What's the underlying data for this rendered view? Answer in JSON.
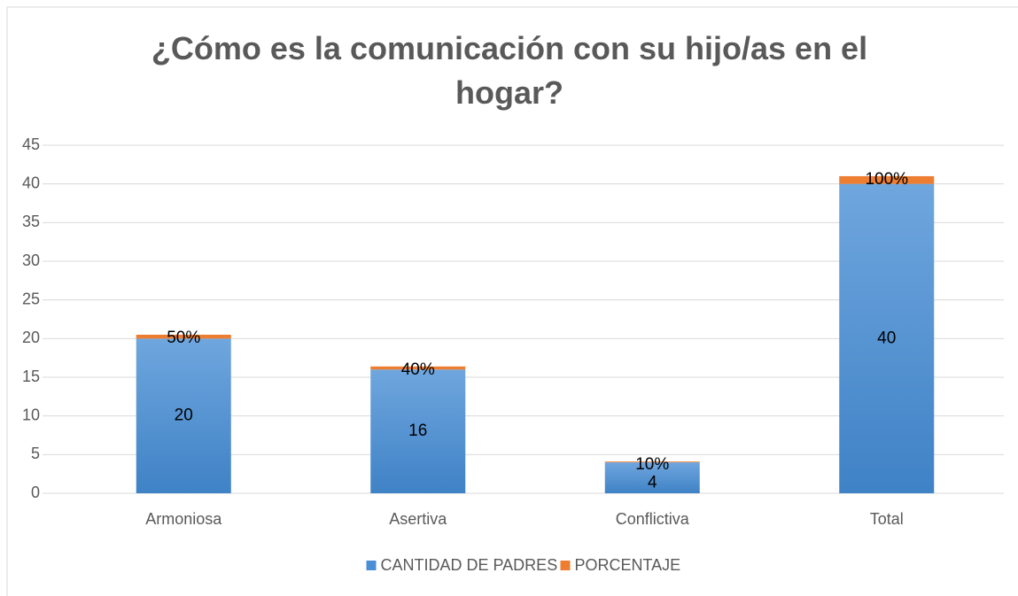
{
  "chart_data": {
    "type": "bar",
    "stacked": true,
    "title": "¿Cómo es la comunicación con su hijo/as en el hogar?",
    "categories": [
      "Armoniosa",
      "Asertiva",
      "Conflictiva",
      "Total"
    ],
    "series": [
      {
        "name": "CANTIDAD DE PADRES",
        "color": "#4a8fd4",
        "values": [
          20,
          16,
          4,
          40
        ]
      },
      {
        "name": "PORCENTAJE",
        "color": "#ed7d31",
        "values": [
          0.5,
          0.4,
          0.1,
          1
        ],
        "value_labels": [
          "50%",
          "40%",
          "10%",
          "100%"
        ]
      }
    ],
    "ylim": [
      0,
      45
    ],
    "yticks": [
      0,
      5,
      10,
      15,
      20,
      25,
      30,
      35,
      40,
      45
    ],
    "grid": true,
    "legend": "bottom"
  }
}
